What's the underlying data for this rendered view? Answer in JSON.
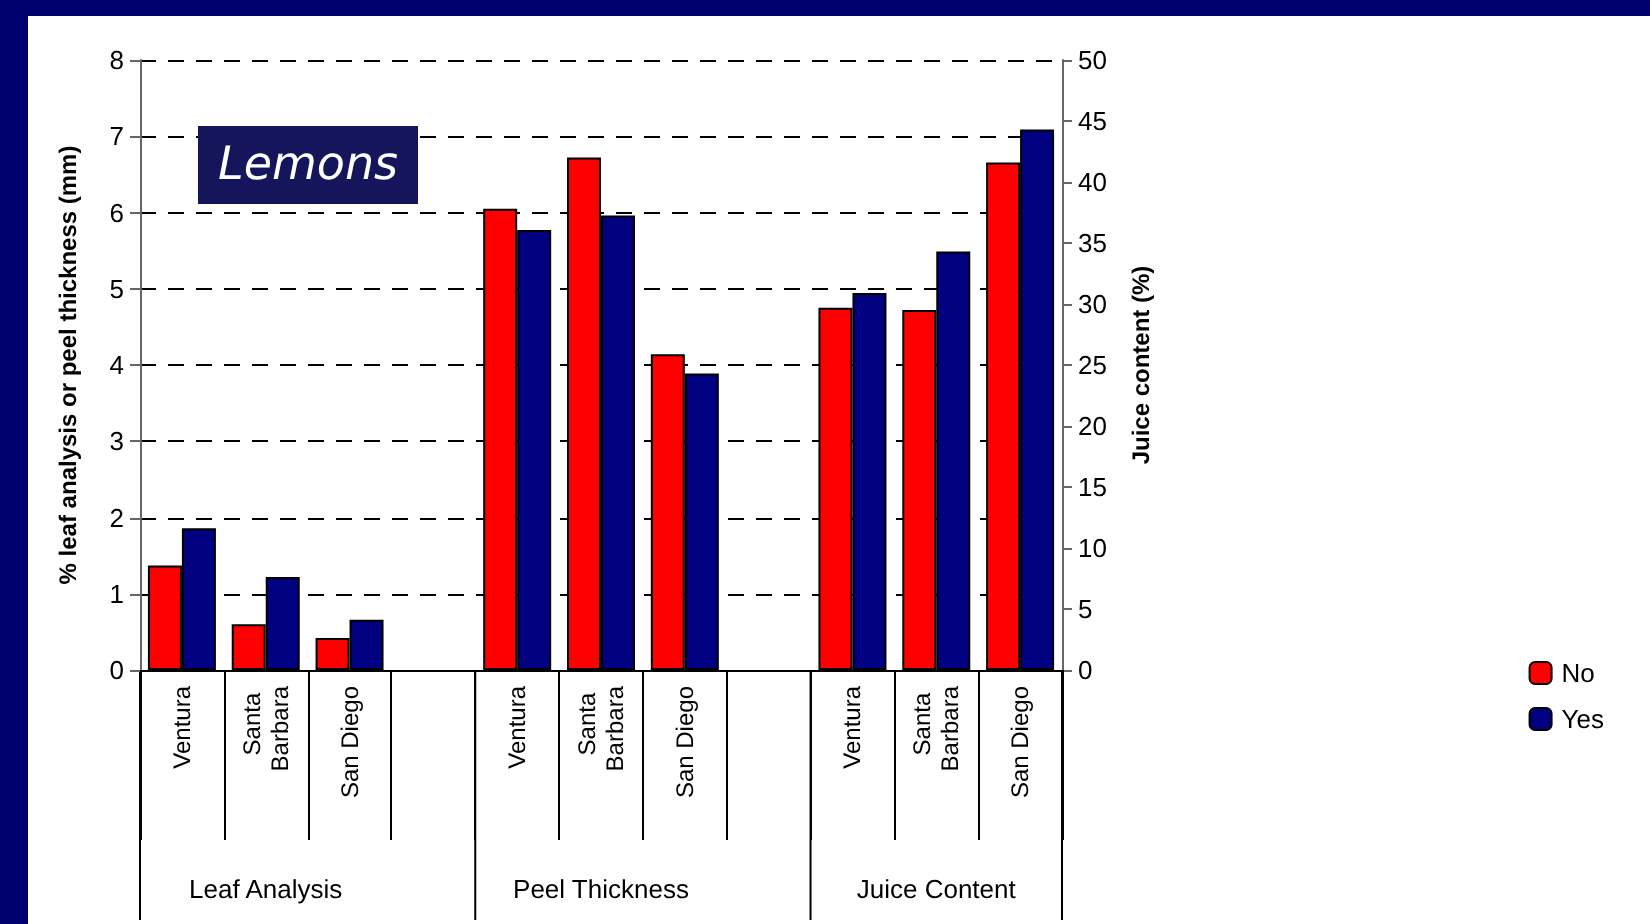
{
  "chart_data": {
    "type": "bar",
    "title": "Lemons",
    "categories": [
      "Ventura",
      "Santa Barbara",
      "San Diego",
      null,
      "Ventura",
      "Santa Barbara",
      "San Diego",
      null,
      "Ventura",
      "Santa Barbara",
      "San Diego"
    ],
    "series": [
      {
        "name": "No",
        "color": "#ff0000",
        "values": [
          1.37,
          0.6,
          0.42,
          null,
          6.05,
          6.72,
          4.14,
          null,
          null,
          null,
          null
        ]
      },
      {
        "name": "Yes",
        "color": "#000080",
        "values": [
          1.86,
          1.22,
          0.66,
          null,
          5.77,
          5.96,
          3.89,
          null,
          null,
          null,
          null
        ]
      },
      {
        "color": "#ff0000",
        "axis": "y2",
        "values": [
          null,
          null,
          null,
          null,
          null,
          null,
          null,
          null,
          29.7,
          29.5,
          41.6
        ]
      },
      {
        "color": "#000080",
        "axis": "y2",
        "values": [
          null,
          null,
          null,
          null,
          null,
          null,
          null,
          null,
          30.9,
          34.3,
          44.3
        ]
      }
    ],
    "ylabel": "% leaf analysis or peel thickness (mm)",
    "y2label": "Juice content (%)",
    "ylim": [
      0,
      8
    ],
    "yticks": [
      0,
      1,
      2,
      3,
      4,
      5,
      6,
      7,
      8
    ],
    "y2lim": [
      0,
      50
    ],
    "y2ticks": [
      0,
      5,
      10,
      15,
      20,
      25,
      30,
      35,
      40,
      45,
      50
    ],
    "annotations": [
      "Leaf Analysis",
      "Peel Thickness",
      "Juice Content"
    ],
    "grid": "y",
    "legend": "right"
  }
}
